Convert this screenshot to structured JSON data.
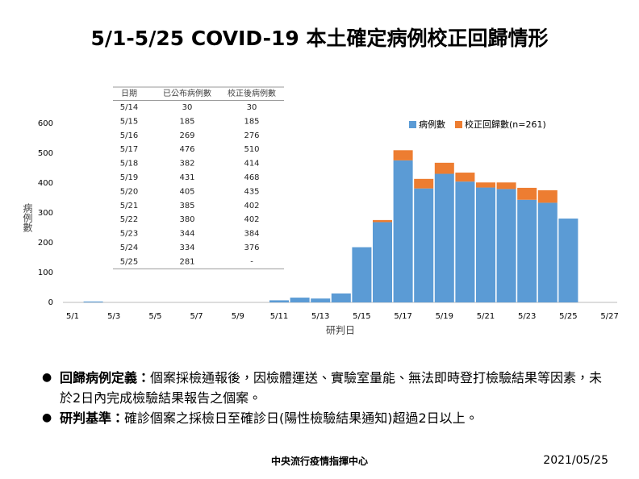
{
  "title": "5/1-5/25 COVID-19 本土確定病例校正回歸情形",
  "chart_data": {
    "type": "bar",
    "stacked": true,
    "categories": [
      "5/1",
      null,
      "5/3",
      null,
      "5/5",
      null,
      "5/7",
      null,
      "5/9",
      null,
      "5/11",
      null,
      "5/13",
      null,
      "5/15",
      null,
      "5/17",
      null,
      "5/19",
      null,
      "5/21",
      null,
      "5/23",
      null,
      "5/25",
      null,
      "5/27"
    ],
    "series": [
      {
        "name": "病例數",
        "color": "#5b9bd5",
        "values": [
          0,
          3,
          0,
          0,
          0,
          0,
          0,
          0,
          0,
          0,
          7,
          16,
          13,
          30,
          185,
          269,
          476,
          382,
          431,
          405,
          385,
          380,
          344,
          334,
          281,
          null,
          null
        ]
      },
      {
        "name": "校正回歸數(n=261)",
        "color": "#ed7d31",
        "values": [
          0,
          0,
          0,
          0,
          0,
          0,
          0,
          0,
          0,
          0,
          0,
          0,
          0,
          0,
          0,
          7,
          34,
          32,
          37,
          30,
          17,
          22,
          40,
          42,
          0,
          null,
          null
        ]
      }
    ],
    "ylim": [
      0,
      600
    ],
    "yticks": [
      0,
      100,
      200,
      300,
      400,
      500,
      600
    ],
    "x_label": "研判日",
    "y_label": "病例數",
    "legend": "top-right",
    "grid": false
  },
  "table": {
    "header": [
      "日期",
      "已公布病例數",
      "校正後病例數"
    ],
    "rows": [
      [
        "5/14",
        30,
        30
      ],
      [
        "5/15",
        185,
        185
      ],
      [
        "5/16",
        269,
        276
      ],
      [
        "5/17",
        476,
        510
      ],
      [
        "5/18",
        382,
        414
      ],
      [
        "5/19",
        431,
        468
      ],
      [
        "5/20",
        405,
        435
      ],
      [
        "5/21",
        385,
        402
      ],
      [
        "5/22",
        380,
        402
      ],
      [
        "5/23",
        344,
        384
      ],
      [
        "5/24",
        334,
        376
      ],
      [
        "5/25",
        281,
        "-"
      ]
    ]
  },
  "notes": [
    {
      "label": "回歸病例定義：",
      "text": "個案採檢通報後，因檢體運送、實驗室量能、無法即時登打檢驗結果等因素，未於2日內完成檢驗結果報告之個案。"
    },
    {
      "label": "研判基準：",
      "text": "確診個案之採檢日至確診日(陽性檢驗結果通知)超過2日以上。"
    }
  ],
  "footer": {
    "org": "中央流行疫情指揮中心",
    "date": "2021/05/25"
  }
}
